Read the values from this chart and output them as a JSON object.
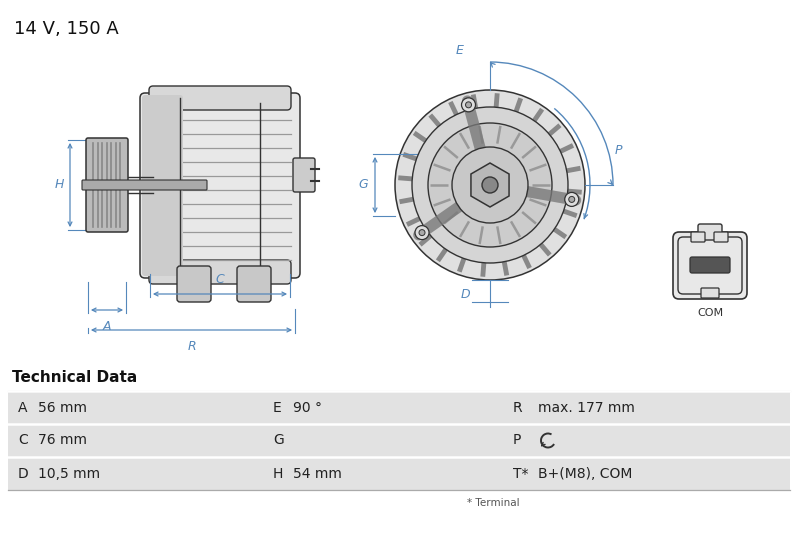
{
  "title": "14 V, 150 A",
  "bg_color": "#ffffff",
  "table_header": "Technical Data",
  "table_bg": "#e2e2e2",
  "table_rows": [
    [
      "A",
      "56 mm",
      "E",
      "90 °",
      "R",
      "max. 177 mm"
    ],
    [
      "C",
      "76 mm",
      "G",
      "",
      "P",
      "↺"
    ],
    [
      "D",
      "10,5 mm",
      "H",
      "54 mm",
      "T*",
      "B+(M8), COM"
    ]
  ],
  "table_footer": "* Terminal",
  "dim_color": "#5588bb",
  "body_color": "#d8d8d8",
  "body_edge": "#444444",
  "line_color": "#333333"
}
